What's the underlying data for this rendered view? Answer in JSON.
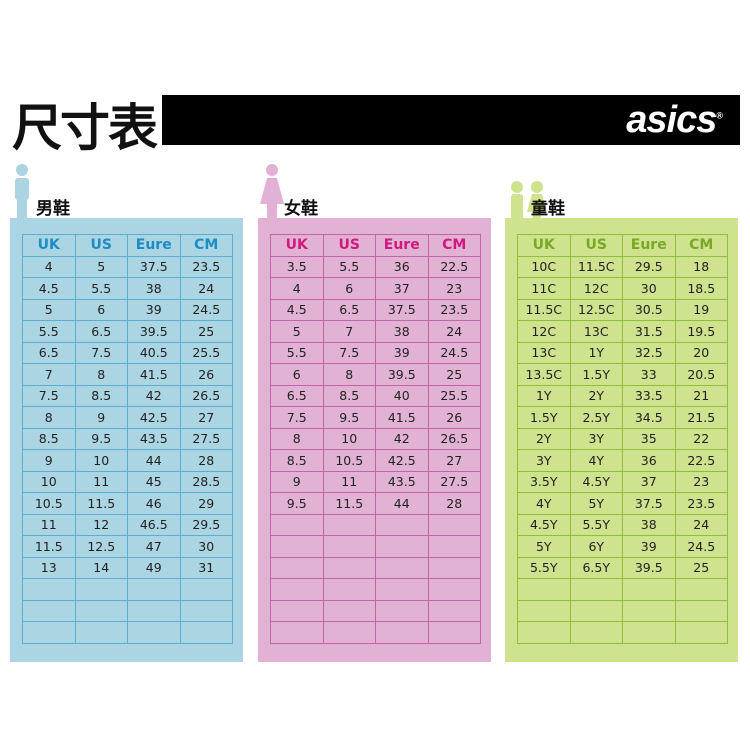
{
  "title": "尺寸表",
  "brand": "asics",
  "colors": {
    "men": "#abd5e2",
    "women": "#e2b2d5",
    "kids": "#cfe38e",
    "banner": "#000000"
  },
  "headers": [
    "UK",
    "US",
    "Eure",
    "CM"
  ],
  "men": {
    "label": "男鞋",
    "icon": "man-icon",
    "rows": [
      [
        "4",
        "5",
        "37.5",
        "23.5"
      ],
      [
        "4.5",
        "5.5",
        "38",
        "24"
      ],
      [
        "5",
        "6",
        "39",
        "24.5"
      ],
      [
        "5.5",
        "6.5",
        "39.5",
        "25"
      ],
      [
        "6.5",
        "7.5",
        "40.5",
        "25.5"
      ],
      [
        "7",
        "8",
        "41.5",
        "26"
      ],
      [
        "7.5",
        "8.5",
        "42",
        "26.5"
      ],
      [
        "8",
        "9",
        "42.5",
        "27"
      ],
      [
        "8.5",
        "9.5",
        "43.5",
        "27.5"
      ],
      [
        "9",
        "10",
        "44",
        "28"
      ],
      [
        "10",
        "11",
        "45",
        "28.5"
      ],
      [
        "10.5",
        "11.5",
        "46",
        "29"
      ],
      [
        "11",
        "12",
        "46.5",
        "29.5"
      ],
      [
        "11.5",
        "12.5",
        "47",
        "30"
      ],
      [
        "13",
        "14",
        "49",
        "31"
      ]
    ]
  },
  "women": {
    "label": "女鞋",
    "icon": "woman-icon",
    "rows": [
      [
        "3.5",
        "5.5",
        "36",
        "22.5"
      ],
      [
        "4",
        "6",
        "37",
        "23"
      ],
      [
        "4.5",
        "6.5",
        "37.5",
        "23.5"
      ],
      [
        "5",
        "7",
        "38",
        "24"
      ],
      [
        "5.5",
        "7.5",
        "39",
        "24.5"
      ],
      [
        "6",
        "8",
        "39.5",
        "25"
      ],
      [
        "6.5",
        "8.5",
        "40",
        "25.5"
      ],
      [
        "7.5",
        "9.5",
        "41.5",
        "26"
      ],
      [
        "8",
        "10",
        "42",
        "26.5"
      ],
      [
        "8.5",
        "10.5",
        "42.5",
        "27"
      ],
      [
        "9",
        "11",
        "43.5",
        "27.5"
      ],
      [
        "9.5",
        "11.5",
        "44",
        "28"
      ]
    ]
  },
  "kids": {
    "label": "童鞋",
    "icon": "children-icon",
    "rows": [
      [
        "10C",
        "11.5C",
        "29.5",
        "18"
      ],
      [
        "11C",
        "12C",
        "30",
        "18.5"
      ],
      [
        "11.5C",
        "12.5C",
        "30.5",
        "19"
      ],
      [
        "12C",
        "13C",
        "31.5",
        "19.5"
      ],
      [
        "13C",
        "1Y",
        "32.5",
        "20"
      ],
      [
        "13.5C",
        "1.5Y",
        "33",
        "20.5"
      ],
      [
        "1Y",
        "2Y",
        "33.5",
        "21"
      ],
      [
        "1.5Y",
        "2.5Y",
        "34.5",
        "21.5"
      ],
      [
        "2Y",
        "3Y",
        "35",
        "22"
      ],
      [
        "3Y",
        "4Y",
        "36",
        "22.5"
      ],
      [
        "3.5Y",
        "4.5Y",
        "37",
        "23"
      ],
      [
        "4Y",
        "5Y",
        "37.5",
        "23.5"
      ],
      [
        "4.5Y",
        "5.5Y",
        "38",
        "24"
      ],
      [
        "5Y",
        "6Y",
        "39",
        "24.5"
      ],
      [
        "5.5Y",
        "6.5Y",
        "39.5",
        "25"
      ]
    ]
  }
}
